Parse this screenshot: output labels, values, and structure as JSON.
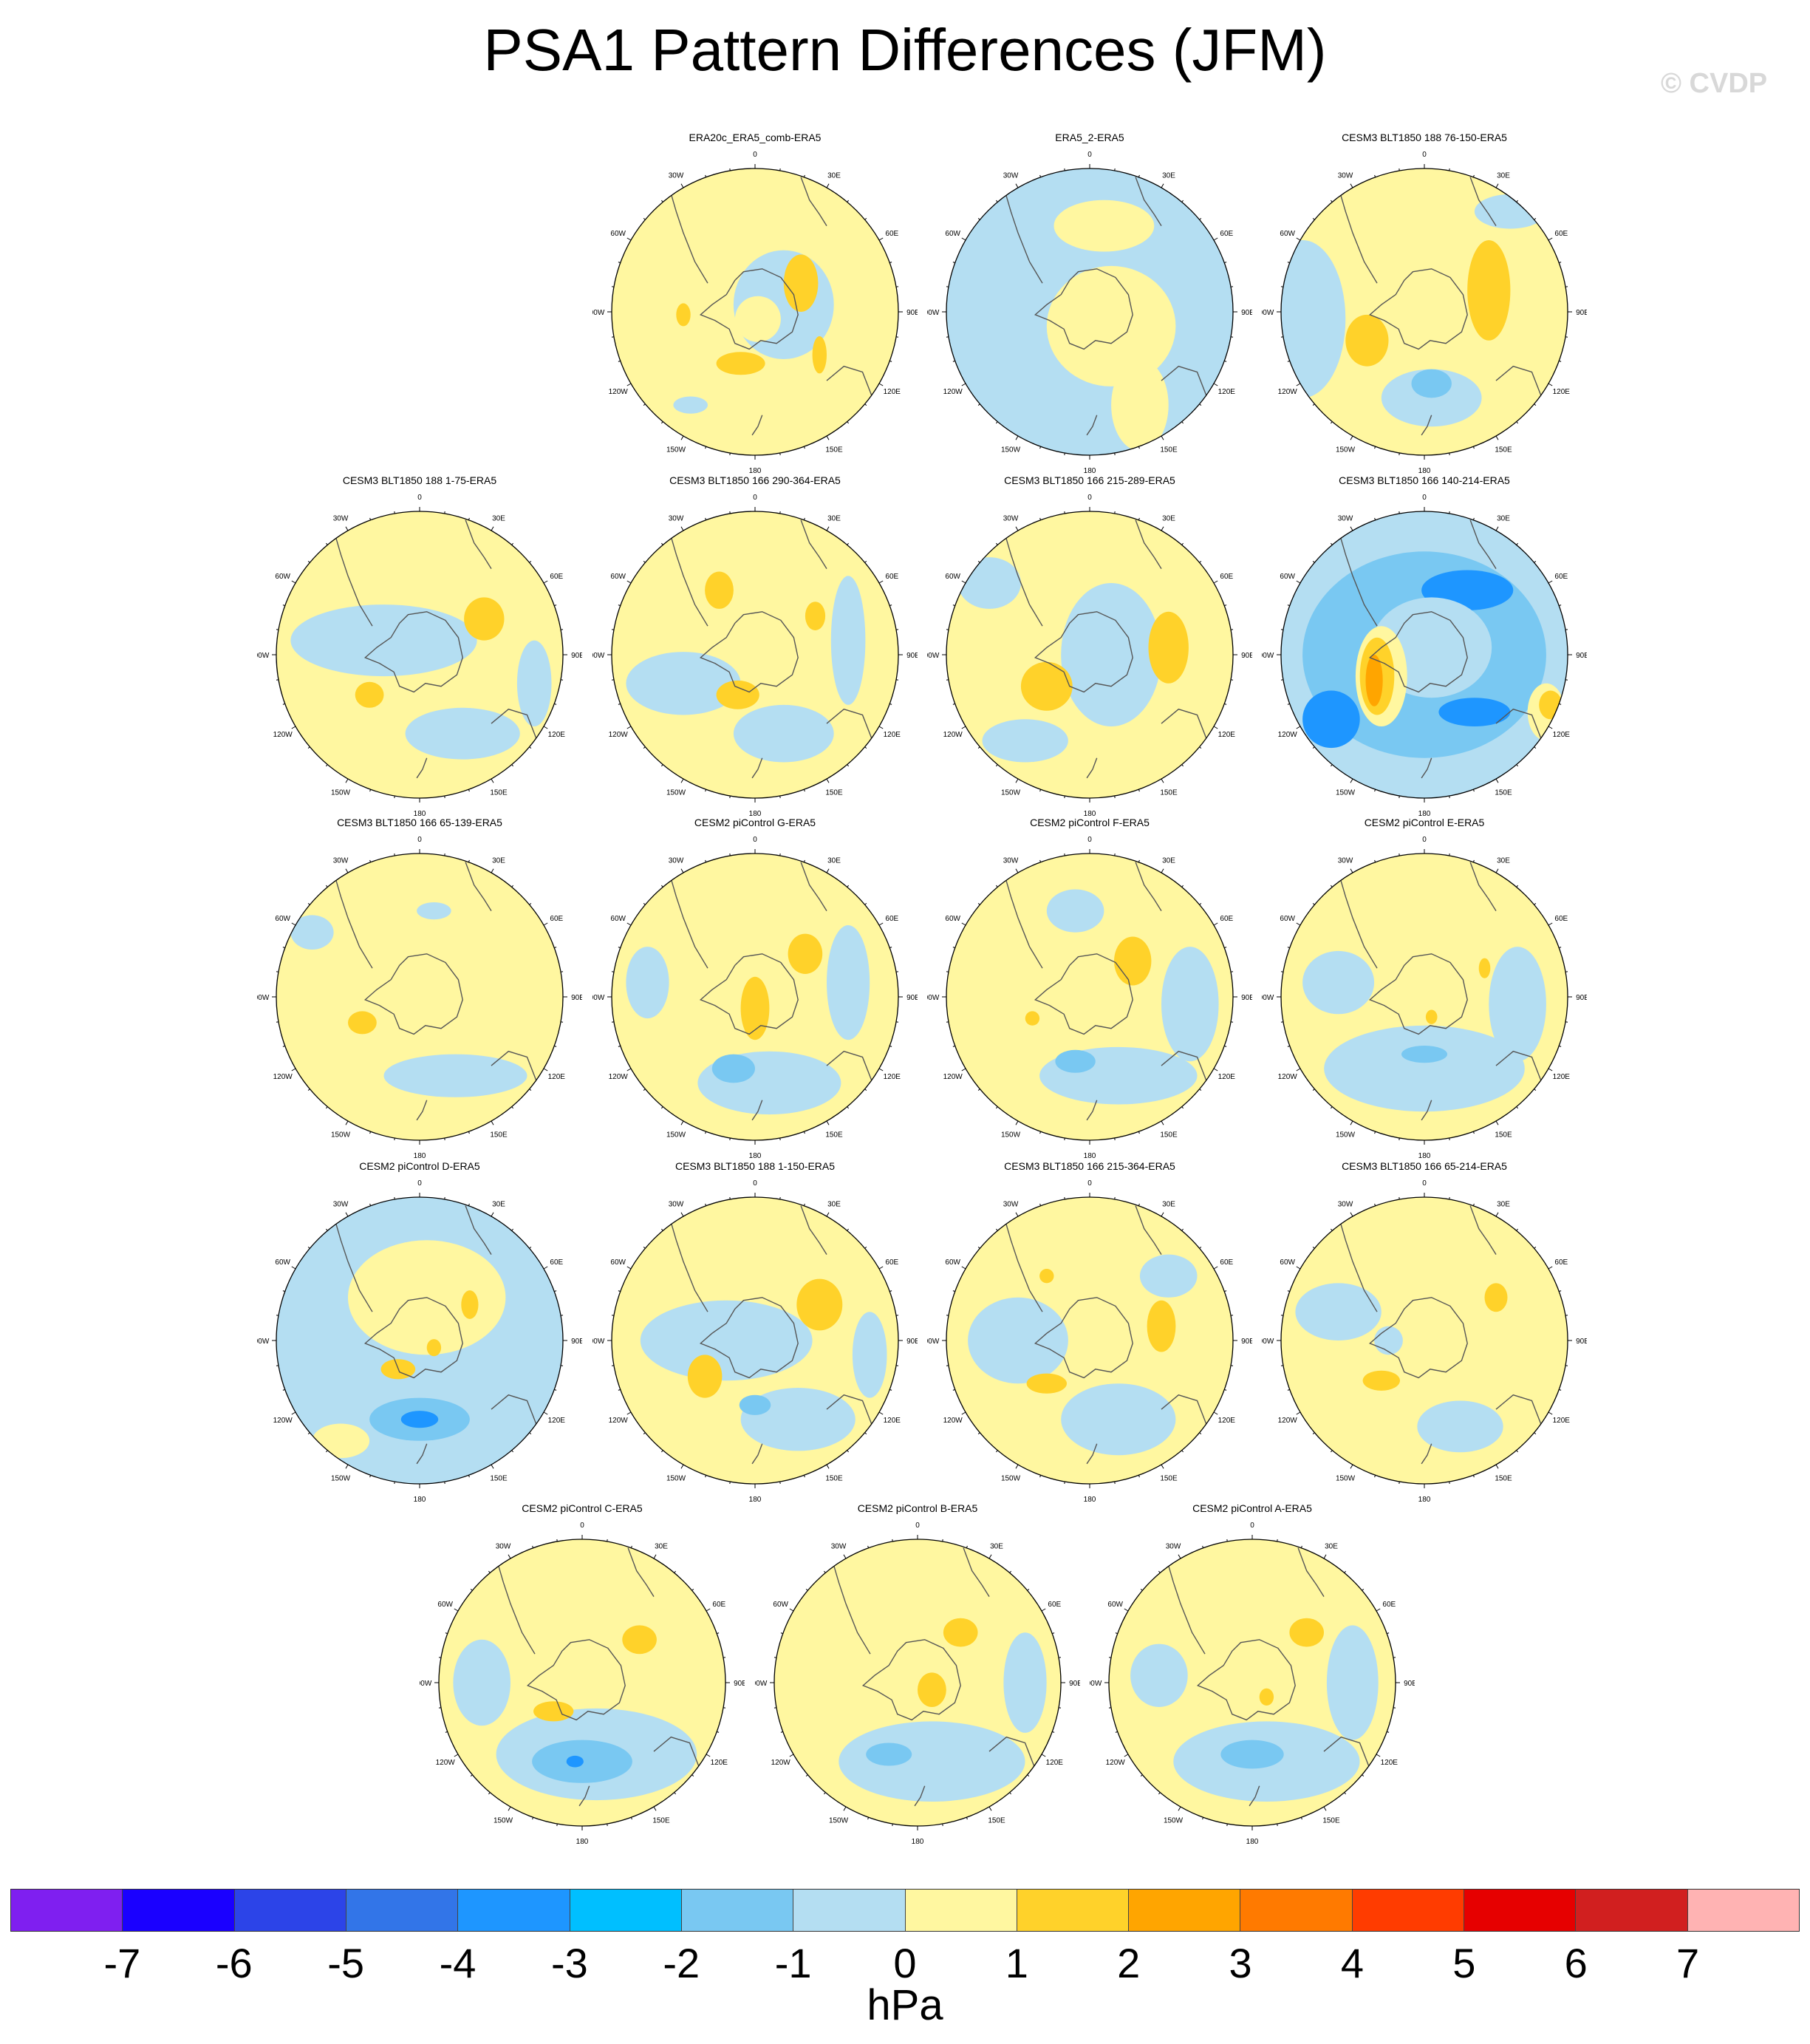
{
  "title": "PSA1 Pattern Differences (JFM)",
  "watermark": "© CVDP",
  "units": "hPa",
  "lon_labels": [
    "0",
    "30E",
    "60E",
    "90E",
    "120E",
    "150E",
    "180",
    "150W",
    "120W",
    "90W",
    "60W",
    "30W"
  ],
  "colorbar": {
    "colors": [
      "#7f1ff0",
      "#1a00ff",
      "#2c44e8",
      "#3275e8",
      "#1e96ff",
      "#00bfff",
      "#79c8f2",
      "#b4def2",
      "#fff7a0",
      "#ffd22a",
      "#ffa500",
      "#ff7a00",
      "#ff3c00",
      "#e60000",
      "#d11f1f",
      "#ffb3b3"
    ],
    "tick_labels": [
      "-7",
      "-6",
      "-5",
      "-4",
      "-3",
      "-2",
      "-1",
      "0",
      "1",
      "2",
      "3",
      "4",
      "5",
      "6",
      "7"
    ]
  },
  "panels": [
    {
      "title": "ERA20c_ERA5_comb-ERA5",
      "background": "#fff7a0",
      "blobs": [
        [
          "#b4def2",
          0.2,
          -0.05,
          0.35,
          0.38
        ],
        [
          "#fff7a0",
          0.02,
          0.05,
          0.16,
          0.16
        ],
        [
          "#ffd22a",
          0.32,
          -0.2,
          0.12,
          0.2
        ],
        [
          "#ffd22a",
          -0.1,
          0.36,
          0.17,
          0.08
        ],
        [
          "#ffd22a",
          -0.5,
          0.02,
          0.05,
          0.08
        ],
        [
          "#b4def2",
          -0.45,
          0.65,
          0.12,
          0.06
        ],
        [
          "#ffd22a",
          0.45,
          0.3,
          0.05,
          0.13
        ]
      ]
    },
    {
      "title": "ERA5_2-ERA5",
      "background": "#b4def2",
      "blobs": [
        [
          "#fff7a0",
          0.15,
          0.1,
          0.45,
          0.42
        ],
        [
          "#fff7a0",
          0.35,
          0.65,
          0.2,
          0.32
        ],
        [
          "#fff7a0",
          0.1,
          -0.6,
          0.35,
          0.18
        ]
      ]
    },
    {
      "title": "CESM3 BLT1850 188 76-150-ERA5",
      "background": "#fff7a0",
      "blobs": [
        [
          "#b4def2",
          -0.85,
          0.05,
          0.3,
          0.55
        ],
        [
          "#b4def2",
          0.05,
          0.6,
          0.35,
          0.2
        ],
        [
          "#79c8f2",
          0.05,
          0.5,
          0.14,
          0.1
        ],
        [
          "#ffd22a",
          0.45,
          -0.15,
          0.15,
          0.35
        ],
        [
          "#ffd22a",
          -0.4,
          0.2,
          0.15,
          0.18
        ],
        [
          "#b4def2",
          0.6,
          -0.7,
          0.25,
          0.12
        ]
      ]
    },
    {
      "title": "CESM3 BLT1850 188 1-75-ERA5",
      "background": "#fff7a0",
      "blobs": [
        [
          "#b4def2",
          -0.25,
          -0.1,
          0.65,
          0.25
        ],
        [
          "#b4def2",
          0.3,
          0.55,
          0.4,
          0.18
        ],
        [
          "#ffd22a",
          0.45,
          -0.25,
          0.14,
          0.15
        ],
        [
          "#ffd22a",
          -0.35,
          0.28,
          0.1,
          0.09
        ],
        [
          "#b4def2",
          0.8,
          0.2,
          0.12,
          0.3
        ]
      ]
    },
    {
      "title": "CESM3 BLT1850 166 290-364-ERA5",
      "background": "#fff7a0",
      "blobs": [
        [
          "#b4def2",
          -0.5,
          0.2,
          0.4,
          0.22
        ],
        [
          "#b4def2",
          0.2,
          0.55,
          0.35,
          0.2
        ],
        [
          "#ffd22a",
          -0.25,
          -0.45,
          0.1,
          0.13
        ],
        [
          "#ffd22a",
          0.42,
          -0.27,
          0.07,
          0.1
        ],
        [
          "#ffd22a",
          -0.12,
          0.28,
          0.15,
          0.1
        ],
        [
          "#b4def2",
          0.65,
          -0.1,
          0.12,
          0.45
        ]
      ]
    },
    {
      "title": "CESM3 BLT1850 166 215-289-ERA5",
      "background": "#fff7a0",
      "blobs": [
        [
          "#b4def2",
          0.15,
          0.0,
          0.35,
          0.5
        ],
        [
          "#b4def2",
          -0.45,
          0.6,
          0.3,
          0.15
        ],
        [
          "#ffd22a",
          0.55,
          -0.05,
          0.14,
          0.25
        ],
        [
          "#ffd22a",
          -0.3,
          0.22,
          0.18,
          0.17
        ],
        [
          "#b4def2",
          -0.7,
          -0.5,
          0.22,
          0.18
        ]
      ]
    },
    {
      "title": "CESM3 BLT1850 166 140-214-ERA5",
      "background": "#b4def2",
      "blobs": [
        [
          "#79c8f2",
          0.0,
          0.0,
          0.85,
          0.72
        ],
        [
          "#1e96ff",
          0.3,
          -0.45,
          0.32,
          0.14
        ],
        [
          "#1e96ff",
          -0.65,
          0.45,
          0.2,
          0.2
        ],
        [
          "#1e96ff",
          0.35,
          0.4,
          0.25,
          0.1
        ],
        [
          "#b4def2",
          0.05,
          -0.05,
          0.42,
          0.35
        ],
        [
          "#fff7a0",
          -0.3,
          0.15,
          0.18,
          0.35
        ],
        [
          "#ffd22a",
          -0.33,
          0.15,
          0.12,
          0.27
        ],
        [
          "#ffa500",
          -0.35,
          0.18,
          0.06,
          0.18
        ],
        [
          "#fff7a0",
          0.85,
          0.4,
          0.13,
          0.2
        ],
        [
          "#ffd22a",
          0.88,
          0.35,
          0.08,
          0.1
        ]
      ]
    },
    {
      "title": "CESM3 BLT1850 166 65-139-ERA5",
      "background": "#fff7a0",
      "blobs": [
        [
          "#b4def2",
          0.25,
          0.55,
          0.5,
          0.15
        ],
        [
          "#b4def2",
          -0.75,
          -0.45,
          0.15,
          0.12
        ],
        [
          "#ffd22a",
          -0.4,
          0.18,
          0.1,
          0.08
        ],
        [
          "#b4def2",
          0.1,
          -0.6,
          0.12,
          0.06
        ]
      ]
    },
    {
      "title": "CESM2 piControl G-ERA5",
      "background": "#fff7a0",
      "blobs": [
        [
          "#b4def2",
          0.1,
          0.6,
          0.5,
          0.22
        ],
        [
          "#79c8f2",
          -0.15,
          0.5,
          0.15,
          0.1
        ],
        [
          "#ffd22a",
          0.0,
          0.08,
          0.1,
          0.22
        ],
        [
          "#ffd22a",
          0.35,
          -0.3,
          0.12,
          0.14
        ],
        [
          "#b4def2",
          -0.75,
          -0.1,
          0.15,
          0.25
        ],
        [
          "#b4def2",
          0.65,
          -0.1,
          0.15,
          0.4
        ]
      ]
    },
    {
      "title": "CESM2 piControl F-ERA5",
      "background": "#fff7a0",
      "blobs": [
        [
          "#b4def2",
          0.2,
          0.55,
          0.55,
          0.2
        ],
        [
          "#79c8f2",
          -0.1,
          0.45,
          0.14,
          0.08
        ],
        [
          "#ffd22a",
          0.3,
          -0.25,
          0.13,
          0.17
        ],
        [
          "#b4def2",
          0.7,
          0.05,
          0.2,
          0.4
        ],
        [
          "#b4def2",
          -0.1,
          -0.6,
          0.2,
          0.15
        ],
        [
          "#ffd22a",
          -0.4,
          0.15,
          0.05,
          0.05
        ]
      ]
    },
    {
      "title": "CESM2 piControl E-ERA5",
      "background": "#fff7a0",
      "blobs": [
        [
          "#b4def2",
          0.0,
          0.5,
          0.7,
          0.3
        ],
        [
          "#79c8f2",
          0.0,
          0.4,
          0.16,
          0.06
        ],
        [
          "#b4def2",
          -0.6,
          -0.1,
          0.25,
          0.22
        ],
        [
          "#b4def2",
          0.65,
          0.05,
          0.2,
          0.4
        ],
        [
          "#ffd22a",
          0.42,
          -0.2,
          0.04,
          0.07
        ],
        [
          "#ffd22a",
          0.05,
          0.14,
          0.04,
          0.05
        ]
      ]
    },
    {
      "title": "CESM2 piControl D-ERA5",
      "background": "#b4def2",
      "blobs": [
        [
          "#fff7a0",
          0.05,
          -0.3,
          0.55,
          0.4
        ],
        [
          "#fff7a0",
          -0.55,
          0.7,
          0.2,
          0.12
        ],
        [
          "#79c8f2",
          0.0,
          0.55,
          0.35,
          0.15
        ],
        [
          "#1e96ff",
          0.0,
          0.55,
          0.13,
          0.06
        ],
        [
          "#ffd22a",
          -0.15,
          0.2,
          0.12,
          0.07
        ],
        [
          "#ffd22a",
          0.35,
          -0.25,
          0.06,
          0.1
        ],
        [
          "#ffd22a",
          0.1,
          0.05,
          0.05,
          0.06
        ]
      ]
    },
    {
      "title": "CESM3 BLT1850 188 1-150-ERA5",
      "background": "#fff7a0",
      "blobs": [
        [
          "#b4def2",
          -0.2,
          0.0,
          0.6,
          0.28
        ],
        [
          "#b4def2",
          0.3,
          0.55,
          0.4,
          0.22
        ],
        [
          "#79c8f2",
          0.0,
          0.45,
          0.11,
          0.07
        ],
        [
          "#ffd22a",
          0.45,
          -0.25,
          0.16,
          0.18
        ],
        [
          "#ffd22a",
          -0.35,
          0.25,
          0.12,
          0.15
        ],
        [
          "#b4def2",
          0.8,
          0.1,
          0.12,
          0.3
        ]
      ]
    },
    {
      "title": "CESM3 BLT1850 166 215-364-ERA5",
      "background": "#fff7a0",
      "blobs": [
        [
          "#b4def2",
          -0.5,
          0.0,
          0.35,
          0.3
        ],
        [
          "#b4def2",
          0.2,
          0.55,
          0.4,
          0.25
        ],
        [
          "#b4def2",
          0.55,
          -0.45,
          0.2,
          0.15
        ],
        [
          "#ffd22a",
          0.5,
          -0.1,
          0.1,
          0.18
        ],
        [
          "#ffd22a",
          -0.3,
          0.3,
          0.14,
          0.07
        ],
        [
          "#ffd22a",
          -0.3,
          -0.45,
          0.05,
          0.05
        ]
      ]
    },
    {
      "title": "CESM3 BLT1850 166 65-214-ERA5",
      "background": "#fff7a0",
      "blobs": [
        [
          "#b4def2",
          -0.6,
          -0.2,
          0.3,
          0.2
        ],
        [
          "#b4def2",
          0.25,
          0.6,
          0.3,
          0.18
        ],
        [
          "#ffd22a",
          0.5,
          -0.3,
          0.08,
          0.1
        ],
        [
          "#ffd22a",
          -0.3,
          0.28,
          0.13,
          0.07
        ],
        [
          "#b4def2",
          -0.25,
          0.0,
          0.1,
          0.1
        ]
      ]
    },
    {
      "title": "CESM2 piControl C-ERA5",
      "background": "#fff7a0",
      "blobs": [
        [
          "#b4def2",
          0.1,
          0.5,
          0.7,
          0.32
        ],
        [
          "#79c8f2",
          0.0,
          0.55,
          0.35,
          0.15
        ],
        [
          "#1e96ff",
          -0.05,
          0.55,
          0.06,
          0.04
        ],
        [
          "#ffd22a",
          0.4,
          -0.3,
          0.12,
          0.1
        ],
        [
          "#ffd22a",
          -0.2,
          0.2,
          0.14,
          0.07
        ],
        [
          "#b4def2",
          -0.7,
          0.0,
          0.2,
          0.3
        ]
      ]
    },
    {
      "title": "CESM2 piControl B-ERA5",
      "background": "#fff7a0",
      "blobs": [
        [
          "#b4def2",
          0.1,
          0.55,
          0.65,
          0.28
        ],
        [
          "#79c8f2",
          -0.2,
          0.5,
          0.16,
          0.08
        ],
        [
          "#ffd22a",
          0.3,
          -0.35,
          0.12,
          0.1
        ],
        [
          "#ffd22a",
          0.1,
          0.05,
          0.1,
          0.12
        ],
        [
          "#b4def2",
          0.75,
          0.0,
          0.15,
          0.35
        ]
      ]
    },
    {
      "title": "CESM2 piControl A-ERA5",
      "background": "#fff7a0",
      "blobs": [
        [
          "#b4def2",
          0.1,
          0.55,
          0.65,
          0.28
        ],
        [
          "#79c8f2",
          0.0,
          0.5,
          0.22,
          0.1
        ],
        [
          "#ffd22a",
          0.38,
          -0.35,
          0.12,
          0.1
        ],
        [
          "#ffd22a",
          0.1,
          0.1,
          0.05,
          0.06
        ],
        [
          "#b4def2",
          -0.65,
          -0.05,
          0.2,
          0.22
        ],
        [
          "#b4def2",
          0.7,
          0.0,
          0.18,
          0.4
        ]
      ]
    }
  ]
}
